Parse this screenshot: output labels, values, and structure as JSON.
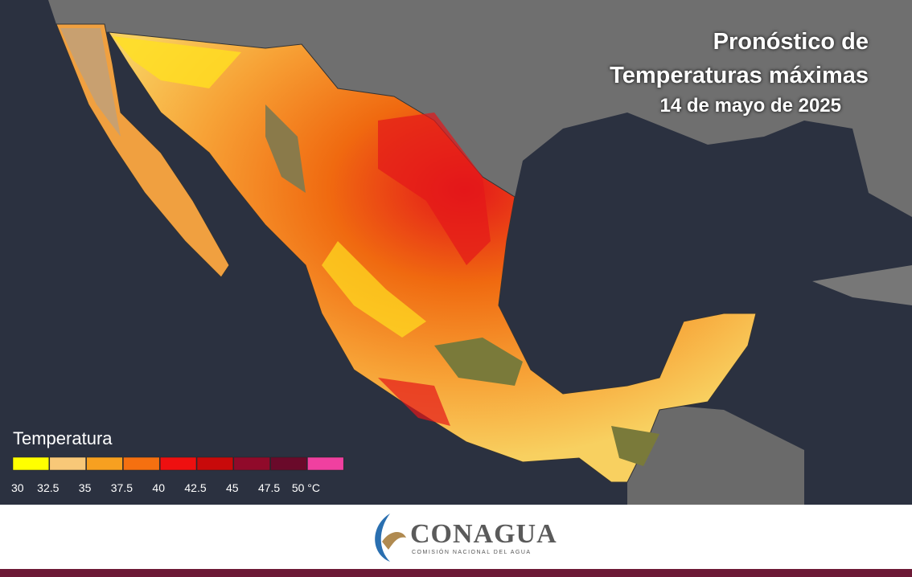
{
  "header": {
    "title_line1": "Pronóstico de",
    "title_line2": "Temperaturas máximas",
    "date": "14 de mayo de 2025"
  },
  "legend": {
    "title": "Temperatura",
    "colors": [
      "#ffff00",
      "#f8c878",
      "#f7a020",
      "#f57010",
      "#ee1010",
      "#c80a0a",
      "#900a2a",
      "#6a0a2a",
      "#f040a0"
    ],
    "labels": [
      "30",
      "32.5",
      "35",
      "37.5",
      "40",
      "42.5",
      "45",
      "47.5",
      "50 °C"
    ]
  },
  "footer": {
    "logo_name": "CONAGUA",
    "logo_subtitle": "COMISIÓN NACIONAL DEL AGUA"
  }
}
